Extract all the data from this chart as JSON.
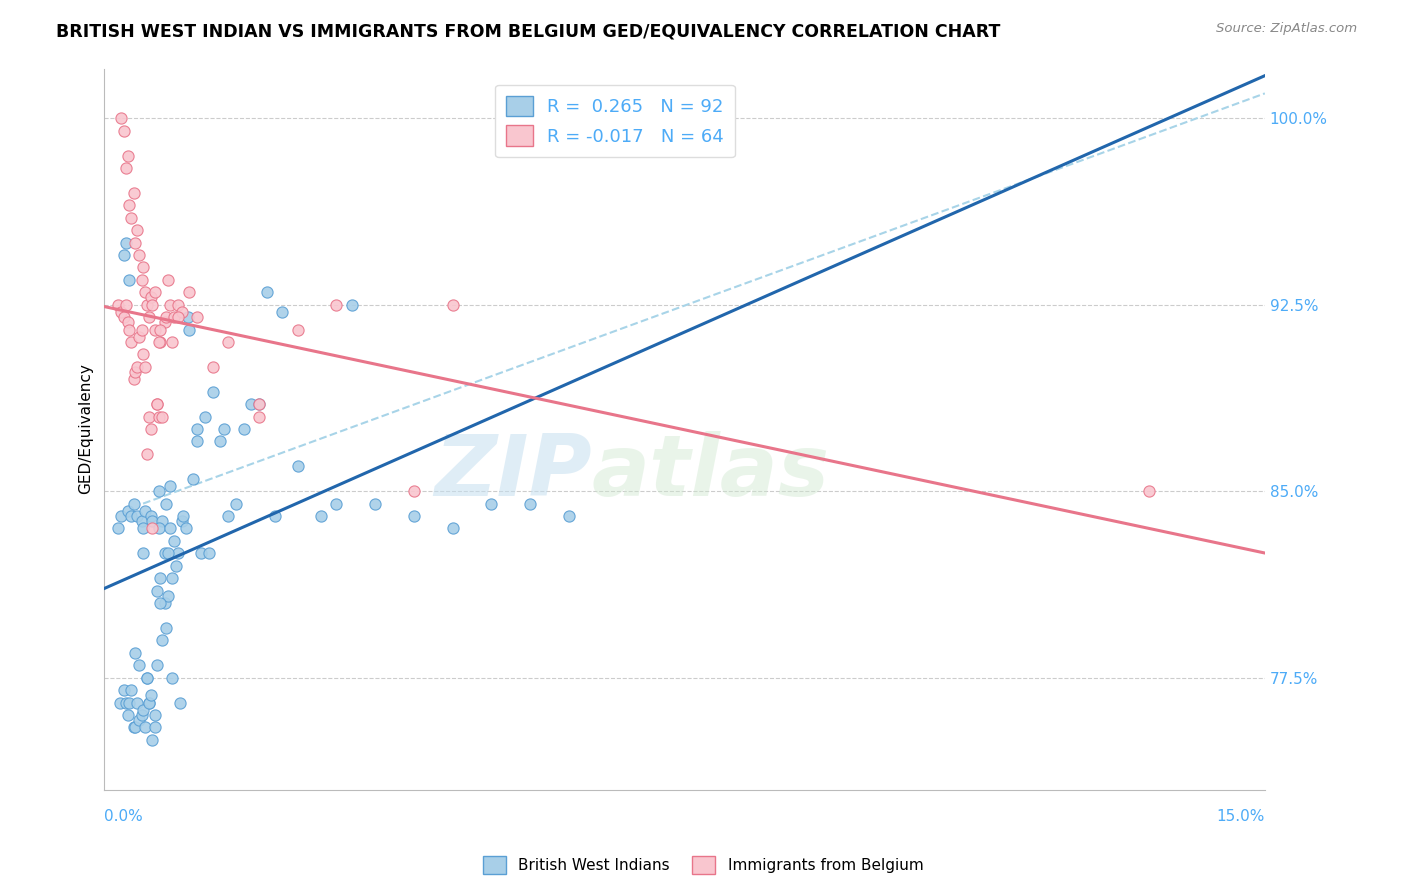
{
  "title": "BRITISH WEST INDIAN VS IMMIGRANTS FROM BELGIUM GED/EQUIVALENCY CORRELATION CHART",
  "source": "Source: ZipAtlas.com",
  "ylabel": "GED/Equivalency",
  "xmin": 0.0,
  "xmax": 15.0,
  "ymin": 73.0,
  "ymax": 102.0,
  "blue_R": 0.265,
  "blue_N": 92,
  "pink_R": -0.017,
  "pink_N": 64,
  "blue_color": "#a8cfe8",
  "pink_color": "#f9c6cf",
  "blue_edge_color": "#5a9fd4",
  "pink_edge_color": "#e8758a",
  "blue_line_color": "#2166ac",
  "pink_line_color": "#e8758a",
  "dashed_line_color": "#a8d4e8",
  "watermark_zip": "ZIP",
  "watermark_atlas": "atlas",
  "legend_label_blue": "British West Indians",
  "legend_label_pink": "Immigrants from Belgium",
  "blue_scatter_x": [
    0.18,
    0.22,
    0.25,
    0.28,
    0.3,
    0.32,
    0.35,
    0.38,
    0.4,
    0.42,
    0.45,
    0.48,
    0.5,
    0.5,
    0.52,
    0.55,
    0.58,
    0.6,
    0.62,
    0.65,
    0.68,
    0.7,
    0.72,
    0.75,
    0.78,
    0.8,
    0.82,
    0.85,
    0.88,
    0.9,
    0.92,
    0.95,
    0.98,
    1.0,
    1.02,
    1.05,
    1.08,
    1.1,
    1.15,
    1.2,
    1.25,
    1.3,
    1.35,
    1.4,
    1.5,
    1.55,
    1.6,
    1.7,
    1.8,
    1.9,
    2.0,
    2.1,
    2.2,
    2.3,
    2.5,
    2.8,
    3.0,
    3.2,
    3.5,
    4.0,
    4.5,
    5.0,
    5.5,
    6.0,
    0.2,
    0.25,
    0.28,
    0.3,
    0.32,
    0.35,
    0.38,
    0.4,
    0.42,
    0.45,
    0.48,
    0.5,
    0.52,
    0.55,
    0.58,
    0.6,
    0.62,
    0.65,
    0.68,
    0.7,
    0.72,
    0.75,
    0.78,
    0.8,
    0.82,
    0.85,
    0.88,
    1.2
  ],
  "blue_scatter_y": [
    83.5,
    84.0,
    94.5,
    95.0,
    84.2,
    93.5,
    84.0,
    84.5,
    78.5,
    84.0,
    78.0,
    83.8,
    83.5,
    82.5,
    84.2,
    77.5,
    76.5,
    84.0,
    83.8,
    76.0,
    81.0,
    85.0,
    81.5,
    83.8,
    80.5,
    84.5,
    80.8,
    85.2,
    77.5,
    83.0,
    82.0,
    82.5,
    76.5,
    83.8,
    84.0,
    83.5,
    92.0,
    91.5,
    85.5,
    87.5,
    82.5,
    88.0,
    82.5,
    89.0,
    87.0,
    87.5,
    84.0,
    84.5,
    87.5,
    88.5,
    88.5,
    93.0,
    84.0,
    92.2,
    86.0,
    84.0,
    84.5,
    92.5,
    84.5,
    84.0,
    83.5,
    84.5,
    84.5,
    84.0,
    76.5,
    77.0,
    76.5,
    76.0,
    76.5,
    77.0,
    75.5,
    75.5,
    76.5,
    75.8,
    76.0,
    76.2,
    75.5,
    77.5,
    76.5,
    76.8,
    75.0,
    75.5,
    78.0,
    83.5,
    80.5,
    79.0,
    82.5,
    79.5,
    82.5,
    83.5,
    81.5,
    87.0
  ],
  "pink_scatter_x": [
    0.18,
    0.22,
    0.25,
    0.28,
    0.3,
    0.32,
    0.35,
    0.38,
    0.4,
    0.42,
    0.45,
    0.48,
    0.5,
    0.52,
    0.55,
    0.58,
    0.6,
    0.62,
    0.65,
    0.68,
    0.7,
    0.72,
    0.75,
    0.78,
    0.8,
    0.82,
    0.85,
    0.88,
    0.9,
    0.95,
    1.0,
    1.1,
    1.2,
    1.4,
    1.6,
    2.0,
    2.5,
    3.0,
    4.5,
    0.22,
    0.25,
    0.28,
    0.3,
    0.32,
    0.35,
    0.38,
    0.4,
    0.42,
    0.45,
    0.48,
    0.5,
    0.52,
    0.55,
    0.58,
    0.6,
    0.62,
    0.65,
    0.68,
    0.7,
    0.72,
    0.95,
    2.0,
    4.0,
    13.5
  ],
  "pink_scatter_y": [
    92.5,
    92.2,
    92.0,
    92.5,
    91.8,
    91.5,
    91.0,
    89.5,
    89.8,
    90.0,
    91.2,
    91.5,
    90.5,
    90.0,
    86.5,
    88.0,
    87.5,
    83.5,
    91.5,
    88.5,
    88.0,
    91.0,
    88.0,
    91.8,
    92.0,
    93.5,
    92.5,
    91.0,
    92.0,
    92.5,
    92.2,
    93.0,
    92.0,
    90.0,
    91.0,
    88.5,
    91.5,
    92.5,
    92.5,
    100.0,
    99.5,
    98.0,
    98.5,
    96.5,
    96.0,
    97.0,
    95.0,
    95.5,
    94.5,
    93.5,
    94.0,
    93.0,
    92.5,
    92.0,
    92.8,
    92.5,
    93.0,
    88.5,
    91.0,
    91.5,
    92.0,
    88.0,
    85.0,
    85.0
  ]
}
